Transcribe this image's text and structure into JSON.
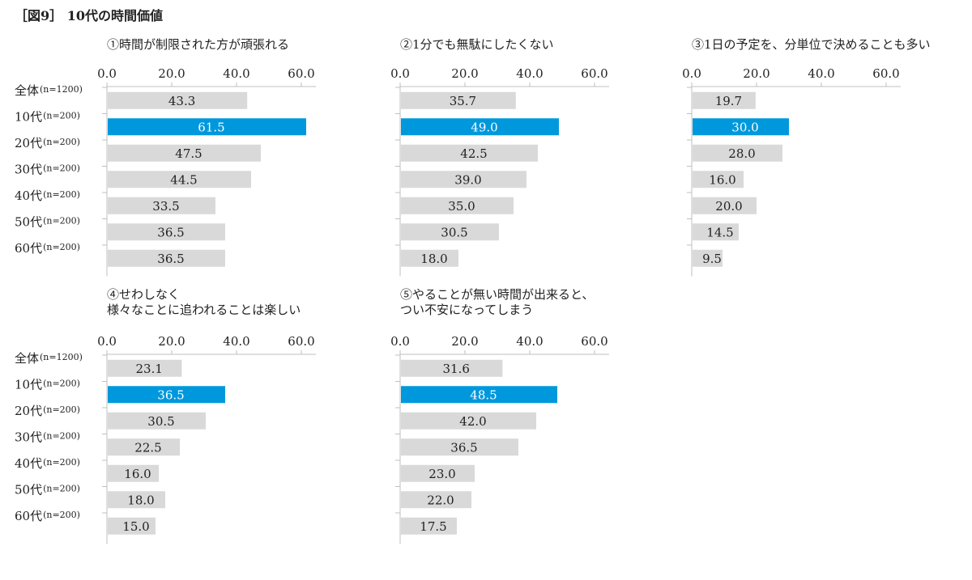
{
  "figure": {
    "title": "［図9］ 10代の時間価値"
  },
  "colors": {
    "bar": "#d9d9d9",
    "highlight": "#0098dc",
    "axis": "#bfbfbf",
    "text": "#222222",
    "highlight_text": "#ffffff"
  },
  "chart_data": [
    {
      "type": "bar",
      "title": "①時間が制限された方が頑張れる",
      "categories": [
        "全体",
        "10代",
        "20代",
        "30代",
        "40代",
        "50代",
        "60代"
      ],
      "category_notes": [
        "(n=1200)",
        "(n=200)",
        "(n=200)",
        "(n=200)",
        "(n=200)",
        "(n=200)",
        "(n=200)"
      ],
      "values": [
        43.3,
        61.5,
        47.5,
        44.5,
        33.5,
        36.5,
        36.5
      ],
      "value_labels": [
        "43.3",
        "61.5",
        "47.5",
        "44.5",
        "33.5",
        "36.5",
        "36.5"
      ],
      "xlim": [
        0,
        80
      ],
      "ticks": [
        "0.0",
        "20.0",
        "40.0",
        "60.0",
        "80.0"
      ],
      "unit": "(%)",
      "highlight_index": 1,
      "orientation": "horizontal",
      "show_categories": true
    },
    {
      "type": "bar",
      "title": "②1分でも無駄にしたくない",
      "categories": [
        "全体",
        "10代",
        "20代",
        "30代",
        "40代",
        "50代",
        "60代"
      ],
      "values": [
        35.7,
        49.0,
        42.5,
        39.0,
        35.0,
        30.5,
        18.0
      ],
      "value_labels": [
        "35.7",
        "49.0",
        "42.5",
        "39.0",
        "35.0",
        "30.5",
        "18.0"
      ],
      "xlim": [
        0,
        80
      ],
      "ticks": [
        "0.0",
        "20.0",
        "40.0",
        "60.0",
        "80.0"
      ],
      "unit": "(%)",
      "highlight_index": 1,
      "orientation": "horizontal",
      "show_categories": false
    },
    {
      "type": "bar",
      "title": "③1日の予定を、分単位で決めることも多い",
      "categories": [
        "全体",
        "10代",
        "20代",
        "30代",
        "40代",
        "50代",
        "60代"
      ],
      "values": [
        19.7,
        30.0,
        28.0,
        16.0,
        20.0,
        14.5,
        9.5
      ],
      "value_labels": [
        "19.7",
        "30.0",
        "28.0",
        "16.0",
        "20.0",
        "14.5",
        "9.5"
      ],
      "xlim": [
        0,
        80
      ],
      "ticks": [
        "0.0",
        "20.0",
        "40.0",
        "60.0",
        "80.0"
      ],
      "unit": "(%)",
      "highlight_index": 1,
      "orientation": "horizontal",
      "show_categories": false
    },
    {
      "type": "bar",
      "title": "④せわしなく\n様々なことに追われることは楽しい",
      "categories": [
        "全体",
        "10代",
        "20代",
        "30代",
        "40代",
        "50代",
        "60代"
      ],
      "category_notes": [
        "(n=1200)",
        "(n=200)",
        "(n=200)",
        "(n=200)",
        "(n=200)",
        "(n=200)",
        "(n=200)"
      ],
      "values": [
        23.1,
        36.5,
        30.5,
        22.5,
        16.0,
        18.0,
        15.0
      ],
      "value_labels": [
        "23.1",
        "36.5",
        "30.5",
        "22.5",
        "16.0",
        "18.0",
        "15.0"
      ],
      "xlim": [
        0,
        80
      ],
      "ticks": [
        "0.0",
        "20.0",
        "40.0",
        "60.0",
        "80.0"
      ],
      "unit": "(%)",
      "highlight_index": 1,
      "orientation": "horizontal",
      "show_categories": true
    },
    {
      "type": "bar",
      "title": "⑤やることが無い時間が出来ると、\nつい不安になってしまう",
      "categories": [
        "全体",
        "10代",
        "20代",
        "30代",
        "40代",
        "50代",
        "60代"
      ],
      "values": [
        31.6,
        48.5,
        42.0,
        36.5,
        23.0,
        22.0,
        17.5
      ],
      "value_labels": [
        "31.6",
        "48.5",
        "42.0",
        "36.5",
        "23.0",
        "22.0",
        "17.5"
      ],
      "xlim": [
        0,
        80
      ],
      "ticks": [
        "0.0",
        "20.0",
        "40.0",
        "60.0",
        "80.0"
      ],
      "unit": "(%)",
      "highlight_index": 1,
      "orientation": "horizontal",
      "show_categories": false
    }
  ]
}
